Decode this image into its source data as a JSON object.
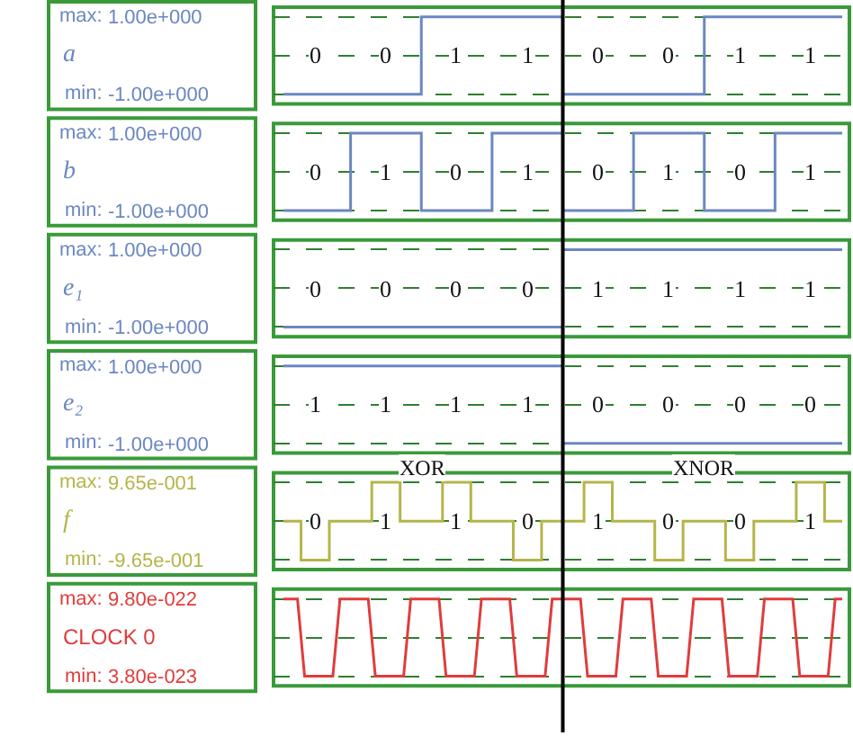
{
  "chart_data": [
    {
      "type": "step",
      "categories": [
        null,
        null,
        null,
        null,
        null,
        null,
        null,
        null,
        null,
        null,
        null,
        null,
        null,
        null,
        null,
        null,
        null,
        null,
        null,
        null,
        null,
        null,
        null,
        null,
        null,
        null,
        null,
        null,
        null,
        null,
        null,
        null,
        null,
        null,
        null,
        null,
        null,
        null,
        null,
        null,
        null,
        null,
        null,
        null,
        null,
        null,
        null,
        null,
        null,
        null,
        null,
        null,
        null,
        null,
        null,
        null,
        null,
        null,
        null,
        null,
        null,
        null,
        null,
        null,
        null,
        null,
        null,
        null,
        null,
        null,
        null,
        null,
        null,
        null,
        null,
        null,
        null,
        null,
        null,
        null
      ],
      "series": [
        {
          "name": "a",
          "color": "#6b87c2",
          "values": [
            -1,
            -1,
            -1,
            -1,
            -1,
            -1,
            -1,
            -1,
            -1,
            -1,
            -1,
            -1,
            -1,
            -1,
            -1,
            -1,
            -1,
            -1,
            -1,
            -1,
            1,
            1,
            1,
            1,
            1,
            1,
            1,
            1,
            1,
            1,
            1,
            1,
            1,
            1,
            1,
            1,
            1,
            1,
            1,
            1,
            -1,
            -1,
            -1,
            -1,
            -1,
            -1,
            -1,
            -1,
            -1,
            -1,
            -1,
            -1,
            -1,
            -1,
            -1,
            -1,
            -1,
            -1,
            -1,
            -1,
            1,
            1,
            1,
            1,
            1,
            1,
            1,
            1,
            1,
            1,
            1,
            1,
            1,
            1,
            1,
            1,
            1,
            1,
            1,
            1
          ]
        }
      ],
      "ylim": [
        -1.25,
        1.25
      ],
      "yticks": [
        {
          "value": 1,
          "label": "1.00e+000"
        },
        {
          "value": 0,
          "label": null
        },
        {
          "value": -1,
          "label": "-1.00e+000"
        }
      ],
      "grid": "y",
      "tick_labels": "y",
      "annotations": [
        "max:",
        "min:",
        {
          "text": "0",
          "y": 0
        },
        {
          "text": "0",
          "y": 0
        },
        {
          "text": "1",
          "y": 0
        },
        {
          "text": "1",
          "y": 0
        },
        {
          "text": "0",
          "y": 0
        },
        {
          "text": "0",
          "y": 0
        },
        {
          "text": "1",
          "y": 0
        },
        {
          "text": "1",
          "y": 0
        }
      ]
    },
    {
      "type": "step",
      "categories": [
        null,
        null,
        null,
        null,
        null,
        null,
        null,
        null,
        null,
        null,
        null,
        null,
        null,
        null,
        null,
        null,
        null,
        null,
        null,
        null,
        null,
        null,
        null,
        null,
        null,
        null,
        null,
        null,
        null,
        null,
        null,
        null,
        null,
        null,
        null,
        null,
        null,
        null,
        null,
        null,
        null,
        null,
        null,
        null,
        null,
        null,
        null,
        null,
        null,
        null,
        null,
        null,
        null,
        null,
        null,
        null,
        null,
        null,
        null,
        null,
        null,
        null,
        null,
        null,
        null,
        null,
        null,
        null,
        null,
        null,
        null,
        null,
        null,
        null,
        null,
        null,
        null,
        null,
        null,
        null
      ],
      "series": [
        {
          "name": "b",
          "color": "#6b87c2",
          "values": [
            -1,
            -1,
            -1,
            -1,
            -1,
            -1,
            -1,
            -1,
            -1,
            -1,
            1,
            1,
            1,
            1,
            1,
            1,
            1,
            1,
            1,
            1,
            -1,
            -1,
            -1,
            -1,
            -1,
            -1,
            -1,
            -1,
            -1,
            -1,
            1,
            1,
            1,
            1,
            1,
            1,
            1,
            1,
            1,
            1,
            -1,
            -1,
            -1,
            -1,
            -1,
            -1,
            -1,
            -1,
            -1,
            -1,
            1,
            1,
            1,
            1,
            1,
            1,
            1,
            1,
            1,
            1,
            -1,
            -1,
            -1,
            -1,
            -1,
            -1,
            -1,
            -1,
            -1,
            -1,
            1,
            1,
            1,
            1,
            1,
            1,
            1,
            1,
            1,
            1
          ]
        }
      ],
      "ylim": [
        -1.25,
        1.25
      ],
      "yticks": [
        {
          "value": 1,
          "label": "1.00e+000"
        },
        {
          "value": 0,
          "label": null
        },
        {
          "value": -1,
          "label": "-1.00e+000"
        }
      ],
      "grid": "y",
      "tick_labels": "y",
      "annotations": [
        "max:",
        "min:",
        {
          "text": "0",
          "y": 0
        },
        {
          "text": "1",
          "y": 0
        },
        {
          "text": "0",
          "y": 0
        },
        {
          "text": "1",
          "y": 0
        },
        {
          "text": "0",
          "y": 0
        },
        {
          "text": "1",
          "y": 0
        },
        {
          "text": "0",
          "y": 0
        },
        {
          "text": "1",
          "y": 0
        }
      ]
    },
    {
      "type": "step",
      "categories": [
        null,
        null,
        null,
        null,
        null,
        null,
        null,
        null,
        null,
        null,
        null,
        null,
        null,
        null,
        null,
        null,
        null,
        null,
        null,
        null,
        null,
        null,
        null,
        null,
        null,
        null,
        null,
        null,
        null,
        null,
        null,
        null,
        null,
        null,
        null,
        null,
        null,
        null,
        null,
        null,
        null,
        null,
        null,
        null,
        null,
        null,
        null,
        null,
        null,
        null,
        null,
        null,
        null,
        null,
        null,
        null,
        null,
        null,
        null,
        null,
        null,
        null,
        null,
        null,
        null,
        null,
        null,
        null,
        null,
        null,
        null,
        null,
        null,
        null,
        null,
        null,
        null,
        null,
        null,
        null
      ],
      "series": [
        {
          "name": "e₁",
          "color": "#6b87c2",
          "values": [
            -1,
            -1,
            -1,
            -1,
            -1,
            -1,
            -1,
            -1,
            -1,
            -1,
            -1,
            -1,
            -1,
            -1,
            -1,
            -1,
            -1,
            -1,
            -1,
            -1,
            -1,
            -1,
            -1,
            -1,
            -1,
            -1,
            -1,
            -1,
            -1,
            -1,
            -1,
            -1,
            -1,
            -1,
            -1,
            -1,
            -1,
            -1,
            -1,
            -1,
            1,
            1,
            1,
            1,
            1,
            1,
            1,
            1,
            1,
            1,
            1,
            1,
            1,
            1,
            1,
            1,
            1,
            1,
            1,
            1,
            1,
            1,
            1,
            1,
            1,
            1,
            1,
            1,
            1,
            1,
            1,
            1,
            1,
            1,
            1,
            1,
            1,
            1,
            1,
            1
          ]
        }
      ],
      "ylim": [
        -1.25,
        1.25
      ],
      "yticks": [
        {
          "value": 1,
          "label": "1.00e+000"
        },
        {
          "value": 0,
          "label": null
        },
        {
          "value": -1,
          "label": "-1.00e+000"
        }
      ],
      "grid": "y",
      "tick_labels": "y",
      "annotations": [
        "max:",
        "min:",
        {
          "text": "0",
          "y": 0
        },
        {
          "text": "0",
          "y": 0
        },
        {
          "text": "0",
          "y": 0
        },
        {
          "text": "0",
          "y": 0
        },
        {
          "text": "1",
          "y": 0
        },
        {
          "text": "1",
          "y": 0
        },
        {
          "text": "1",
          "y": 0
        },
        {
          "text": "1",
          "y": 0
        }
      ]
    },
    {
      "type": "step",
      "categories": [
        null,
        null,
        null,
        null,
        null,
        null,
        null,
        null,
        null,
        null,
        null,
        null,
        null,
        null,
        null,
        null,
        null,
        null,
        null,
        null,
        null,
        null,
        null,
        null,
        null,
        null,
        null,
        null,
        null,
        null,
        null,
        null,
        null,
        null,
        null,
        null,
        null,
        null,
        null,
        null,
        null,
        null,
        null,
        null,
        null,
        null,
        null,
        null,
        null,
        null,
        null,
        null,
        null,
        null,
        null,
        null,
        null,
        null,
        null,
        null,
        null,
        null,
        null,
        null,
        null,
        null,
        null,
        null,
        null,
        null,
        null,
        null,
        null,
        null,
        null,
        null,
        null,
        null,
        null,
        null
      ],
      "series": [
        {
          "name": "e₂",
          "color": "#6b87c2",
          "values": [
            1,
            1,
            1,
            1,
            1,
            1,
            1,
            1,
            1,
            1,
            1,
            1,
            1,
            1,
            1,
            1,
            1,
            1,
            1,
            1,
            1,
            1,
            1,
            1,
            1,
            1,
            1,
            1,
            1,
            1,
            1,
            1,
            1,
            1,
            1,
            1,
            1,
            1,
            1,
            1,
            -1,
            -1,
            -1,
            -1,
            -1,
            -1,
            -1,
            -1,
            -1,
            -1,
            -1,
            -1,
            -1,
            -1,
            -1,
            -1,
            -1,
            -1,
            -1,
            -1,
            -1,
            -1,
            -1,
            -1,
            -1,
            -1,
            -1,
            -1,
            -1,
            -1,
            -1,
            -1,
            -1,
            -1,
            -1,
            -1,
            -1,
            -1,
            -1,
            -1
          ]
        }
      ],
      "ylim": [
        -1.25,
        1.25
      ],
      "yticks": [
        {
          "value": 1,
          "label": "1.00e+000"
        },
        {
          "value": 0,
          "label": null
        },
        {
          "value": -1,
          "label": "-1.00e+000"
        }
      ],
      "grid": "y",
      "tick_labels": "y",
      "annotations": [
        "max:",
        "min:",
        {
          "text": "1",
          "y": 0
        },
        {
          "text": "1",
          "y": 0
        },
        {
          "text": "1",
          "y": 0
        },
        {
          "text": "1",
          "y": 0
        },
        {
          "text": "0",
          "y": 0
        },
        {
          "text": "0",
          "y": 0
        },
        {
          "text": "0",
          "y": 0
        },
        {
          "text": "0",
          "y": 0
        }
      ]
    },
    {
      "type": "step",
      "categories": [
        null,
        null,
        null,
        null,
        null,
        null,
        null,
        null,
        null,
        null,
        null,
        null,
        null,
        null,
        null,
        null,
        null,
        null,
        null,
        null,
        null,
        null,
        null,
        null,
        null,
        null,
        null,
        null,
        null,
        null,
        null,
        null,
        null,
        null,
        null,
        null,
        null,
        null,
        null,
        null,
        null,
        null,
        null,
        null,
        null,
        null,
        null,
        null,
        null,
        null,
        null,
        null,
        null,
        null,
        null,
        null,
        null,
        null,
        null,
        null,
        null,
        null,
        null,
        null,
        null,
        null,
        null,
        null,
        null,
        null,
        null,
        null,
        null,
        null,
        null,
        null,
        null,
        null,
        null,
        null
      ],
      "series": [
        {
          "name": "f",
          "color": "#b5b54a",
          "values": [
            0,
            0,
            0,
            -0.965,
            -0.965,
            -0.965,
            -0.965,
            0,
            0,
            0,
            0,
            0,
            0,
            0.965,
            0.965,
            0.965,
            0.965,
            0,
            0,
            0,
            0,
            0,
            0,
            0.965,
            0.965,
            0.965,
            0.965,
            0,
            0,
            0,
            0,
            0,
            0,
            -0.965,
            -0.965,
            -0.965,
            -0.965,
            0,
            0,
            0,
            0,
            0,
            0,
            0.965,
            0.965,
            0.965,
            0.965,
            0,
            0,
            0,
            0,
            0,
            0,
            -0.965,
            -0.965,
            -0.965,
            -0.965,
            0,
            0,
            0,
            0,
            0,
            0,
            -0.965,
            -0.965,
            -0.965,
            -0.965,
            0,
            0,
            0,
            0,
            0,
            0,
            0.965,
            0.965,
            0.965,
            0.965,
            0,
            0,
            0
          ]
        }
      ],
      "ylim": [
        -1.2,
        1.2
      ],
      "yticks": [
        {
          "value": 0.965,
          "label": "9.65e-001"
        },
        {
          "value": 0,
          "label": null
        },
        {
          "value": -0.965,
          "label": "-9.65e-001"
        }
      ],
      "grid": "y",
      "tick_labels": "y",
      "annotations": [
        "XOR",
        "XNOR",
        "max:",
        "min:",
        {
          "text": "0",
          "y": 0
        },
        {
          "text": "1",
          "y": 0
        },
        {
          "text": "1",
          "y": 0
        },
        {
          "text": "0",
          "y": 0
        },
        {
          "text": "1",
          "y": 0
        },
        {
          "text": "0",
          "y": 0
        },
        {
          "text": "0",
          "y": 0
        },
        {
          "text": "1",
          "y": 0
        }
      ]
    },
    {
      "type": "line",
      "categories": [
        null,
        null,
        null,
        null,
        null,
        null,
        null,
        null,
        null,
        null,
        null,
        null,
        null,
        null,
        null,
        null,
        null,
        null,
        null,
        null,
        null,
        null,
        null,
        null,
        null,
        null,
        null,
        null,
        null,
        null,
        null,
        null,
        null,
        null,
        null,
        null,
        null,
        null,
        null,
        null,
        null,
        null,
        null,
        null,
        null,
        null,
        null,
        null,
        null,
        null,
        null,
        null,
        null,
        null,
        null,
        null,
        null,
        null,
        null,
        null,
        null,
        null,
        null,
        null,
        null,
        null,
        null,
        null,
        null,
        null,
        null,
        null,
        null,
        null,
        null,
        null,
        null,
        null,
        null,
        null
      ],
      "series": [
        {
          "name": "CLOCK 0",
          "color": "#e03c3c",
          "values": [
            9.8e-22,
            9.8e-22,
            9.8e-22,
            3.8e-23,
            3.8e-23,
            3.8e-23,
            3.8e-23,
            3.8e-23,
            9.8e-22,
            9.8e-22,
            9.8e-22,
            9.8e-22,
            9.8e-22,
            3.8e-23,
            3.8e-23,
            3.8e-23,
            3.8e-23,
            3.8e-23,
            9.8e-22,
            9.8e-22,
            9.8e-22,
            9.8e-22,
            9.8e-22,
            3.8e-23,
            3.8e-23,
            3.8e-23,
            3.8e-23,
            3.8e-23,
            9.8e-22,
            9.8e-22,
            9.8e-22,
            9.8e-22,
            9.8e-22,
            3.8e-23,
            3.8e-23,
            3.8e-23,
            3.8e-23,
            3.8e-23,
            9.8e-22,
            9.8e-22,
            9.8e-22,
            9.8e-22,
            9.8e-22,
            3.8e-23,
            3.8e-23,
            3.8e-23,
            3.8e-23,
            3.8e-23,
            9.8e-22,
            9.8e-22,
            9.8e-22,
            9.8e-22,
            9.8e-22,
            3.8e-23,
            3.8e-23,
            3.8e-23,
            3.8e-23,
            3.8e-23,
            9.8e-22,
            9.8e-22,
            9.8e-22,
            9.8e-22,
            9.8e-22,
            3.8e-23,
            3.8e-23,
            3.8e-23,
            3.8e-23,
            3.8e-23,
            9.8e-22,
            9.8e-22,
            9.8e-22,
            9.8e-22,
            9.8e-22,
            3.8e-23,
            3.8e-23,
            3.8e-23,
            3.8e-23,
            3.8e-23,
            9.8e-22,
            9.8e-22
          ]
        }
      ],
      "ylim": [
        -8e-23,
        1.1e-21
      ],
      "yticks": [
        {
          "value": 9.8e-22,
          "label": "9.80e-022"
        },
        {
          "value": 5.09e-22,
          "label": null
        },
        {
          "value": 3.8e-23,
          "label": "3.80e-023"
        }
      ],
      "grid": "y",
      "tick_labels": "y",
      "annotations": [
        "max:",
        "min:"
      ]
    }
  ]
}
